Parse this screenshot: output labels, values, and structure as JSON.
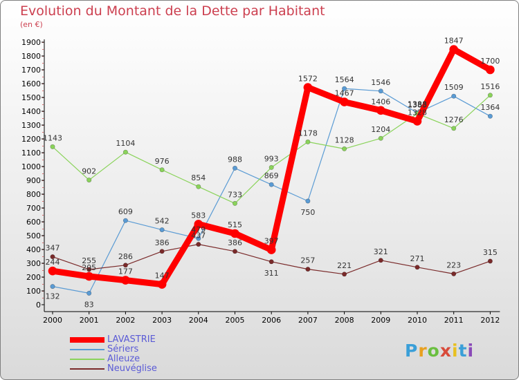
{
  "chart_data": {
    "type": "line",
    "title": "Evolution du Montant de la Dette par Habitant",
    "unit_label": "(en €)",
    "categories": [
      "2000",
      "2001",
      "2002",
      "2003",
      "2004",
      "2005",
      "2006",
      "2007",
      "2008",
      "2009",
      "2010",
      "2011",
      "2012"
    ],
    "ylim": [
      0,
      1900
    ],
    "yticks": [
      0,
      100,
      200,
      300,
      400,
      500,
      600,
      700,
      800,
      900,
      1000,
      1100,
      1200,
      1300,
      1400,
      1500,
      1600,
      1700,
      1800,
      1900
    ],
    "grid": false,
    "legend_position": "bottom-left",
    "series": [
      {
        "name": "LAVASTRIE",
        "color": "#ff0000",
        "width": "thick",
        "values": [
          244,
          205,
          177,
          147,
          583,
          515,
          397,
          1572,
          1467,
          1406,
          1328,
          1847,
          1700
        ]
      },
      {
        "name": "Sériers",
        "color": "#5a9bd4",
        "width": "thin",
        "values": [
          132,
          83,
          609,
          542,
          479,
          988,
          869,
          750,
          1564,
          1546,
          1388,
          1509,
          1364
        ]
      },
      {
        "name": "Alleuze",
        "color": "#8ad35a",
        "width": "thin",
        "values": [
          1143,
          902,
          1104,
          976,
          854,
          733,
          993,
          1178,
          1128,
          1204,
          1383,
          1276,
          1516
        ]
      },
      {
        "name": "Neuvéglise",
        "color": "#7a2a2a",
        "width": "thin",
        "values": [
          347,
          255,
          286,
          386,
          437,
          386,
          311,
          257,
          221,
          321,
          271,
          223,
          315
        ]
      }
    ]
  },
  "logo": {
    "letters": [
      "P",
      "r",
      "o",
      "x",
      "i",
      "t",
      "i"
    ],
    "colors": [
      "#3a9fd8",
      "#e8a020",
      "#6abf40",
      "#d84a3a",
      "#e8c020",
      "#3a9fd8",
      "#8a4ab8"
    ]
  }
}
